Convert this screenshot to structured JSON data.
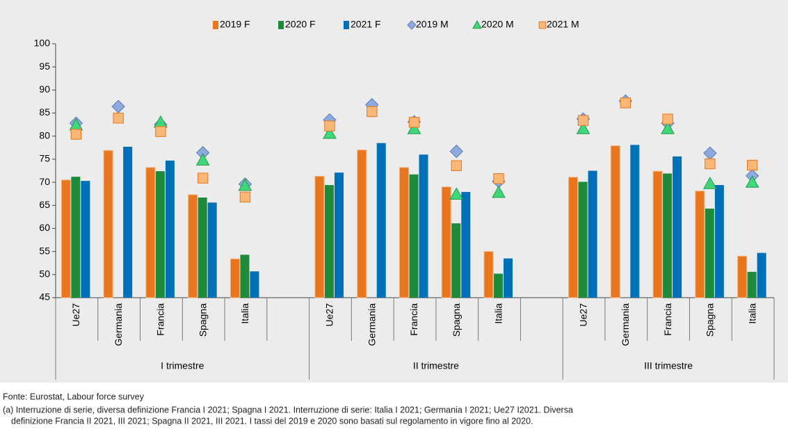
{
  "chart_data": {
    "type": "bar",
    "categories": [
      "Ue27",
      "Germania",
      "Francia",
      "Spagna",
      "Italia",
      null,
      "Ue27",
      "Germania",
      "Francia",
      "Spagna",
      "Italia",
      null,
      "Ue27",
      "Germania",
      "Francia",
      "Spagna",
      "Italia"
    ],
    "groups": [
      "I trimestre",
      "II trimestre",
      "III trimestre"
    ],
    "series": [
      {
        "name": "2019 F",
        "marker": "bar",
        "color": "#E8761E",
        "values": [
          70.5,
          76.9,
          73.2,
          67.3,
          53.4,
          null,
          71.3,
          77.0,
          73.2,
          69.0,
          55.0,
          null,
          71.1,
          77.9,
          72.4,
          68.1,
          54.0
        ]
      },
      {
        "name": "2020 F",
        "marker": "bar",
        "color": "#1E8B3A",
        "values": [
          71.2,
          null,
          72.4,
          66.7,
          54.3,
          null,
          69.4,
          null,
          71.7,
          61.1,
          50.2,
          null,
          70.1,
          null,
          71.9,
          64.3,
          50.6
        ]
      },
      {
        "name": "2021 F",
        "marker": "bar",
        "color": "#0070B8",
        "values": [
          70.3,
          77.7,
          74.7,
          65.6,
          50.7,
          null,
          72.1,
          78.5,
          76.0,
          67.9,
          53.5,
          null,
          72.5,
          78.1,
          75.6,
          69.4,
          54.7
        ]
      },
      {
        "name": "2019 M",
        "marker": "diamond",
        "color": "#8EA9DB",
        "values": [
          82.8,
          86.4,
          82.5,
          76.4,
          69.6,
          null,
          83.5,
          86.8,
          83.1,
          76.7,
          70.2,
          null,
          83.7,
          87.6,
          82.8,
          76.3,
          71.4
        ]
      },
      {
        "name": "2020 M",
        "marker": "triangle",
        "color": "#3FD77A",
        "values": [
          82.4,
          null,
          83.0,
          74.8,
          69.3,
          null,
          80.6,
          null,
          81.6,
          67.4,
          67.8,
          null,
          81.6,
          null,
          81.6,
          69.7,
          70.0
        ]
      },
      {
        "name": "2021 M",
        "marker": "square",
        "color": "#F9B878",
        "values": [
          80.4,
          83.9,
          81.0,
          70.9,
          66.8,
          null,
          82.2,
          85.3,
          83.0,
          73.6,
          70.8,
          null,
          83.4,
          87.2,
          83.7,
          74.0,
          73.7
        ]
      }
    ],
    "ylim": [
      45,
      100
    ],
    "yticks": [
      45,
      50,
      55,
      60,
      65,
      70,
      75,
      80,
      85,
      90,
      95,
      100
    ],
    "legend": "top",
    "source": "Fonte: Eurostat, Labour force survey",
    "notes": [
      "(a) Interruzione di serie, diversa definizione Francia I 2021; Spagna I 2021. Interruzione di serie: Italia I 2021; Germania I 2021; Ue27 I2021. Diversa",
      "definizione Francia II 2021, III 2021; Spagna II 2021, III 2021. I tassi del 2019 e 2020 sono basati sul regolamento in vigore fino al 2020."
    ]
  }
}
